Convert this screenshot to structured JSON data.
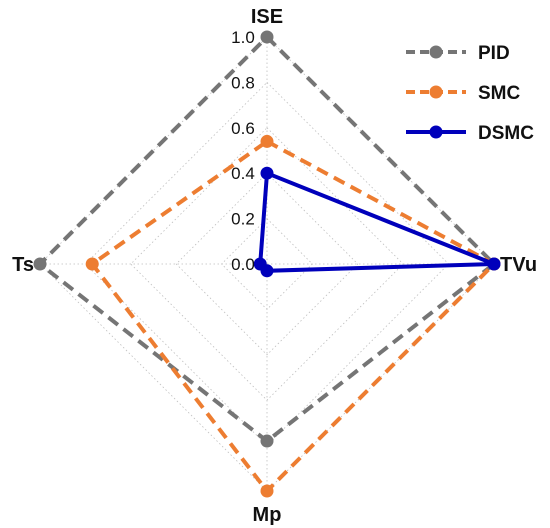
{
  "chart_data": {
    "type": "radar",
    "axes": [
      "ISE",
      "TVu",
      "Mp",
      "Ts"
    ],
    "ticks": [
      "0.0",
      "0.2",
      "0.4",
      "0.6",
      "0.8",
      "1.0"
    ],
    "range": [
      0,
      1
    ],
    "grid": true,
    "legend_position": "top-right",
    "series": [
      {
        "name": "PID",
        "color": "#757575",
        "dash": "dashed",
        "values": [
          1.0,
          1.0,
          0.78,
          1.0
        ]
      },
      {
        "name": "SMC",
        "color": "#ED7D31",
        "dash": "dashed",
        "values": [
          0.54,
          1.0,
          1.0,
          0.77
        ]
      },
      {
        "name": "DSMC",
        "color": "#0000BB",
        "dash": "solid",
        "values": [
          0.4,
          1.0,
          0.03,
          0.03
        ]
      }
    ]
  }
}
